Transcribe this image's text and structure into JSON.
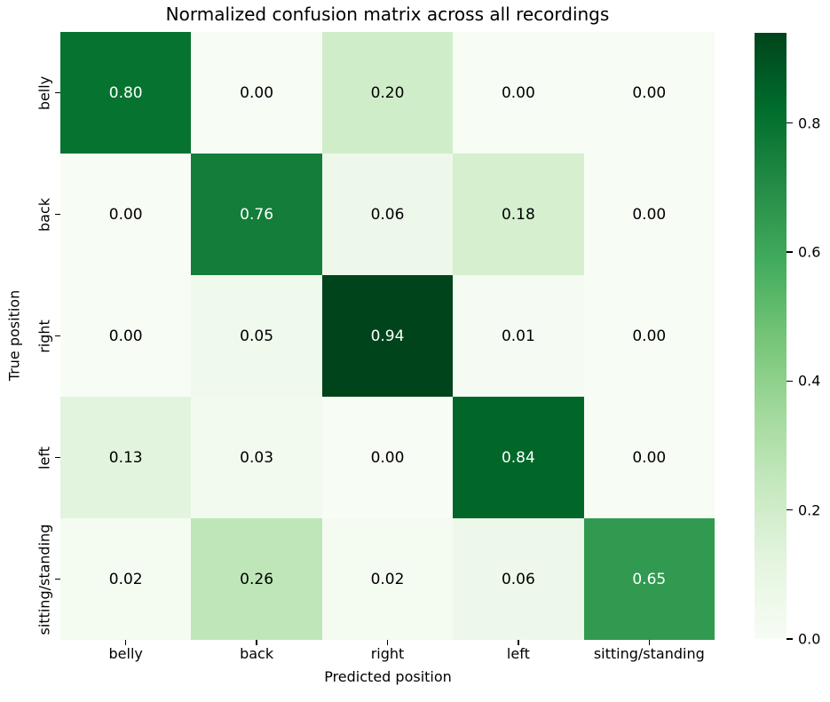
{
  "chart_data": {
    "type": "heatmap",
    "title": "Normalized confusion matrix across all recordings",
    "xlabel": "Predicted position",
    "ylabel": "True position",
    "x_categories": [
      "belly",
      "back",
      "right",
      "left",
      "sitting/standing"
    ],
    "y_categories": [
      "belly",
      "back",
      "right",
      "left",
      "sitting/standing"
    ],
    "matrix": [
      [
        0.8,
        0.0,
        0.2,
        0.0,
        0.0
      ],
      [
        0.0,
        0.76,
        0.06,
        0.18,
        0.0
      ],
      [
        0.0,
        0.05,
        0.94,
        0.01,
        0.0
      ],
      [
        0.13,
        0.03,
        0.0,
        0.84,
        0.0
      ],
      [
        0.02,
        0.26,
        0.02,
        0.06,
        0.65
      ]
    ],
    "cell_labels": [
      [
        "0.80",
        "0.00",
        "0.20",
        "0.00",
        "0.00"
      ],
      [
        "0.00",
        "0.76",
        "0.06",
        "0.18",
        "0.00"
      ],
      [
        "0.00",
        "0.05",
        "0.94",
        "0.01",
        "0.00"
      ],
      [
        "0.13",
        "0.03",
        "0.00",
        "0.84",
        "0.00"
      ],
      [
        "0.02",
        "0.26",
        "0.02",
        "0.06",
        "0.65"
      ]
    ],
    "cell_colors": [
      [
        "#077331",
        "#f7fcf5",
        "#d0edca",
        "#f7fcf5",
        "#f7fcf5"
      ],
      [
        "#f7fcf5",
        "#137d39",
        "#eef8ea",
        "#d5efcf",
        "#f7fcf5"
      ],
      [
        "#f7fcf5",
        "#eff9ec",
        "#00441b",
        "#f5fbf3",
        "#f7fcf5"
      ],
      [
        "#e2f4dd",
        "#f2faf0",
        "#f7fcf5",
        "#006729",
        "#f7fcf5"
      ],
      [
        "#f4fbf1",
        "#bfe6b8",
        "#f4fbf1",
        "#eef8ea",
        "#319a50"
      ]
    ],
    "cell_text_colors": [
      [
        "#ffffff",
        "#000000",
        "#000000",
        "#000000",
        "#000000"
      ],
      [
        "#000000",
        "#ffffff",
        "#000000",
        "#000000",
        "#000000"
      ],
      [
        "#000000",
        "#000000",
        "#ffffff",
        "#000000",
        "#000000"
      ],
      [
        "#000000",
        "#000000",
        "#000000",
        "#ffffff",
        "#000000"
      ],
      [
        "#000000",
        "#000000",
        "#000000",
        "#000000",
        "#ffffff"
      ]
    ],
    "colormap": "Greens",
    "vmin": 0.0,
    "vmax": 0.94,
    "grid": false,
    "colorbar": {
      "tick_labels": [
        "0.8",
        "0.6",
        "0.4",
        "0.2",
        "0.0"
      ],
      "tick_values": [
        0.8,
        0.6,
        0.4,
        0.2,
        0.0
      ],
      "gradient_stops_bottom_to_top": [
        "#f7fcf5",
        "#e5f5e0",
        "#c7e9c0",
        "#a1d99b",
        "#74c476",
        "#41ab5d",
        "#238b45",
        "#006d2c",
        "#00441b"
      ]
    }
  }
}
